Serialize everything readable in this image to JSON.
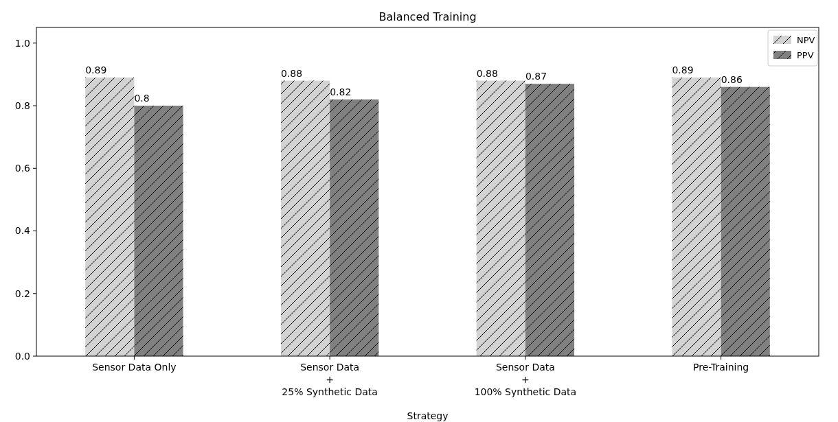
{
  "chart_data": {
    "type": "bar",
    "title": "Balanced Training",
    "xlabel": "Strategy",
    "categories": [
      "Sensor Data Only",
      "Sensor Data\n+\n25% Synthetic Data",
      "Sensor Data\n+\n100% Synthetic Data",
      "Pre-Training"
    ],
    "series": [
      {
        "name": "NPV",
        "color": "#d3d3d3",
        "values": [
          0.89,
          0.88,
          0.88,
          0.89
        ]
      },
      {
        "name": "PPV",
        "color": "#808080",
        "values": [
          0.8,
          0.82,
          0.87,
          0.86
        ]
      }
    ],
    "ylim": [
      0,
      1.05
    ],
    "yticks": [
      {
        "value": 0,
        "label": "0.0"
      },
      0.2,
      0.4,
      0.6,
      0.8,
      {
        "value": 1,
        "label": "1.0"
      }
    ],
    "data_labels": true,
    "legend": "top right",
    "grid": false
  }
}
